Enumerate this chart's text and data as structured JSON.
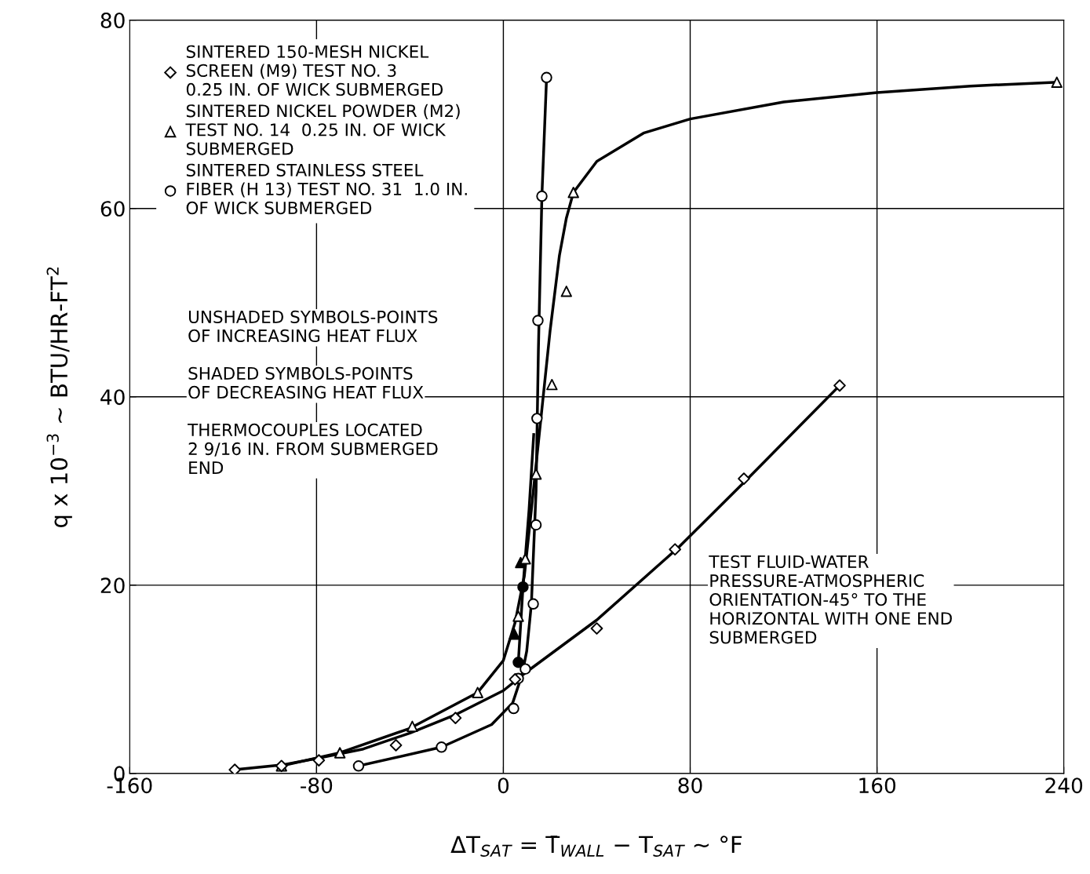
{
  "chart_data": {
    "type": "scatter",
    "xlabel": "ΔT$_{SAT}$ = T̄$_{WALL}$ − T$_{SAT}$ ~ °F",
    "ylabel": "q x 10$^{−3}$ ~ BTU/HR-FT$^{2}$",
    "xlim": [
      -160,
      240
    ],
    "xticks": [
      -160,
      -80,
      0,
      80,
      160,
      240
    ],
    "ylim": [
      0,
      80
    ],
    "yticks": [
      0,
      20,
      40,
      60,
      80
    ],
    "grid": true,
    "legend": "top left",
    "series": [
      {
        "name": "SINTERED 150-MESH NICKEL\nSCREEN (M9) TEST NO. 3\n0.25 IN. OF WICK SUBMERGED",
        "color": "#000000",
        "marker": "diamond",
        "x": [
          -115,
          -95,
          -79,
          -46,
          -20.5,
          5,
          40,
          73.5,
          103,
          144
        ],
        "values": [
          0.4,
          0.8,
          1.4,
          3,
          5.9,
          10,
          15.4,
          23.8,
          31.3,
          41.2
        ]
      },
      {
        "name": "SINTERED NICKEL POWDER (M2)\nTEST NO. 14  0.25 IN. OF WICK\nSUBMERGED",
        "color": "#000000",
        "marker": "triangle",
        "x": [
          -95,
          -70,
          -39,
          -11,
          6.4,
          9.4,
          14,
          20.8,
          27,
          30,
          237
        ],
        "values": [
          0.8,
          2.2,
          5,
          8.6,
          16.7,
          22.8,
          31.8,
          41.3,
          51.2,
          61.7,
          73.4
        ]
      },
      {
        "name": "SINTERED STAINLESS STEEL\nFIBER (H 13) TEST NO. 31  1.0 IN.\nOF WICK SUBMERGED",
        "color": "#000000",
        "marker": "circle",
        "x": [
          -62,
          -26.5,
          4.4,
          6.4,
          9.4,
          12.8,
          14,
          14.4,
          14.8,
          16.5,
          18.5
        ],
        "values": [
          0.8,
          2.8,
          6.9,
          10.1,
          11.1,
          18,
          26.4,
          37.7,
          48.1,
          61.3,
          73.9
        ]
      },
      {
        "color": "#000000",
        "marker": "triangle",
        "x": [
          4.7,
          7.4
        ],
        "values": [
          14.8,
          22.4
        ]
      },
      {
        "color": "#000000",
        "marker": "circle",
        "x": [
          6.4,
          8.4
        ],
        "values": [
          11.8,
          19.8
        ]
      },
      {
        "type": "line",
        "color": "#000000",
        "x": [
          -115,
          -95,
          -80,
          -60,
          -40,
          -20,
          0,
          10,
          40,
          75,
          105,
          144
        ],
        "values": [
          0.4,
          0.9,
          1.6,
          2.6,
          4.3,
          6.3,
          8.8,
          10.8,
          16.3,
          24,
          31.4,
          41.2
        ]
      },
      {
        "type": "line",
        "color": "#000000",
        "x": [
          -95,
          -70,
          -40,
          -11,
          0,
          5,
          9,
          12,
          20,
          24,
          27,
          30,
          40,
          60,
          80,
          120,
          160,
          200,
          237
        ],
        "values": [
          0.8,
          2.2,
          4.8,
          8.6,
          12,
          16,
          21,
          28,
          47,
          55,
          59,
          61.7,
          65,
          68,
          69.5,
          71.3,
          72.3,
          73,
          73.4
        ]
      },
      {
        "type": "line",
        "color": "#000000",
        "x": [
          -62,
          -26.5,
          -5,
          4,
          8,
          10,
          12,
          14,
          15,
          16.5,
          18.5
        ],
        "values": [
          0.8,
          2.8,
          5.2,
          7.5,
          10.5,
          13,
          18,
          30,
          45,
          61.3,
          73.9
        ]
      },
      {
        "type": "line",
        "color": "#000000",
        "x": [
          6.4,
          8.4,
          11,
          13
        ],
        "values": [
          11.8,
          19.8,
          28,
          36
        ]
      }
    ],
    "annotations": [
      "UNSHADED SYMBOLS-POINTS\nOF INCREASING HEAT FLUX",
      "SHADED SYMBOLS-POINTS\nOF DECREASING HEAT FLUX",
      "THERMOCOUPLES LOCATED\n2 9/16 IN. FROM SUBMERGED\nEND",
      "TEST FLUID-WATER\nPRESSURE-ATMOSPHERIC\nORIENTATION-45° TO THE\nHORIZONTAL WITH ONE END\nSUBMERGED"
    ]
  }
}
